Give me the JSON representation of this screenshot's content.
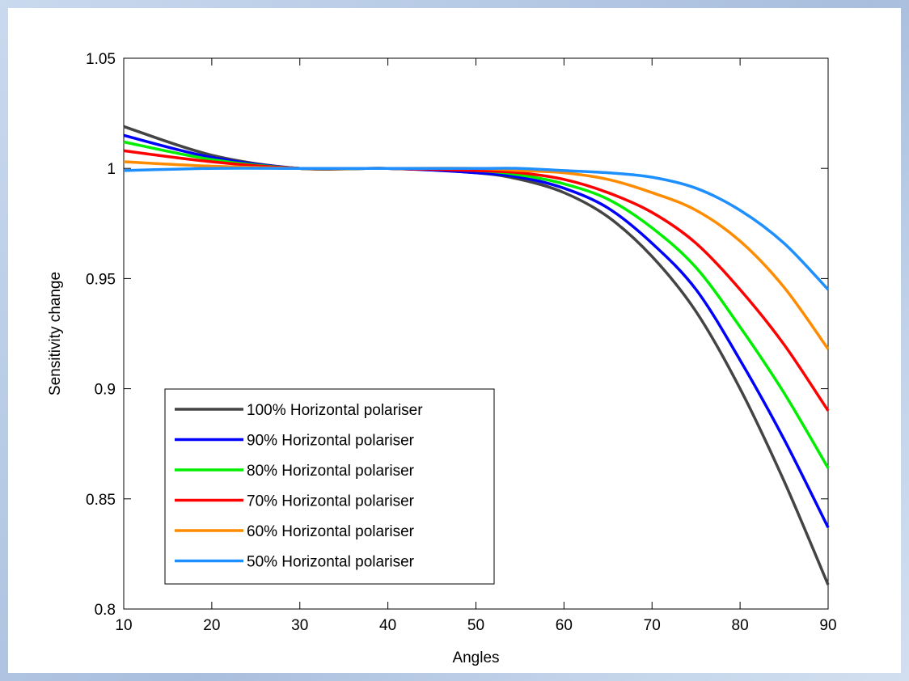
{
  "chart_data": {
    "type": "line",
    "title": "",
    "xlabel": "Angles",
    "ylabel": "Sensitivity change",
    "xlim": [
      10,
      90
    ],
    "ylim": [
      0.8,
      1.05
    ],
    "xticks": [
      "10",
      "20",
      "30",
      "40",
      "50",
      "60",
      "70",
      "80",
      "90"
    ],
    "yticks": [
      "0.8",
      "0.85",
      "0.9",
      "0.95",
      "1",
      "1.05"
    ],
    "grid": false,
    "legend_position": "lower-left",
    "x": [
      10,
      20,
      30,
      40,
      50,
      55,
      60,
      65,
      70,
      75,
      80,
      85,
      90
    ],
    "series": [
      {
        "name": "100% Horizontal polariser",
        "color": "#444444",
        "values": [
          1.019,
          1.006,
          1.0,
          1.0,
          0.998,
          0.995,
          0.989,
          0.978,
          0.96,
          0.935,
          0.9,
          0.858,
          0.811
        ]
      },
      {
        "name": "90% Horizontal polariser",
        "color": "#0000ff",
        "values": [
          1.015,
          1.005,
          1.0,
          1.0,
          0.998,
          0.996,
          0.991,
          0.982,
          0.966,
          0.945,
          0.913,
          0.877,
          0.837
        ]
      },
      {
        "name": "80%  Horizontal polariser",
        "color": "#00ee00",
        "values": [
          1.012,
          1.004,
          1.0,
          1.0,
          0.999,
          0.997,
          0.993,
          0.986,
          0.973,
          0.955,
          0.928,
          0.898,
          0.864
        ]
      },
      {
        "name": "70%  Horizontal polariser",
        "color": "#ff0000",
        "values": [
          1.008,
          1.003,
          1.0,
          1.0,
          0.999,
          0.998,
          0.995,
          0.989,
          0.98,
          0.966,
          0.945,
          0.92,
          0.89
        ]
      },
      {
        "name": "60%  Horizontal polariser",
        "color": "#ff8c00",
        "values": [
          1.003,
          1.001,
          1.0,
          1.0,
          1.0,
          0.999,
          0.998,
          0.995,
          0.989,
          0.981,
          0.967,
          0.946,
          0.918
        ]
      },
      {
        "name": "50%  Horizontal polariser",
        "color": "#1e8fff",
        "values": [
          0.999,
          1.0,
          1.0,
          1.0,
          1.0,
          1.0,
          0.999,
          0.998,
          0.996,
          0.991,
          0.981,
          0.966,
          0.945
        ]
      }
    ]
  }
}
